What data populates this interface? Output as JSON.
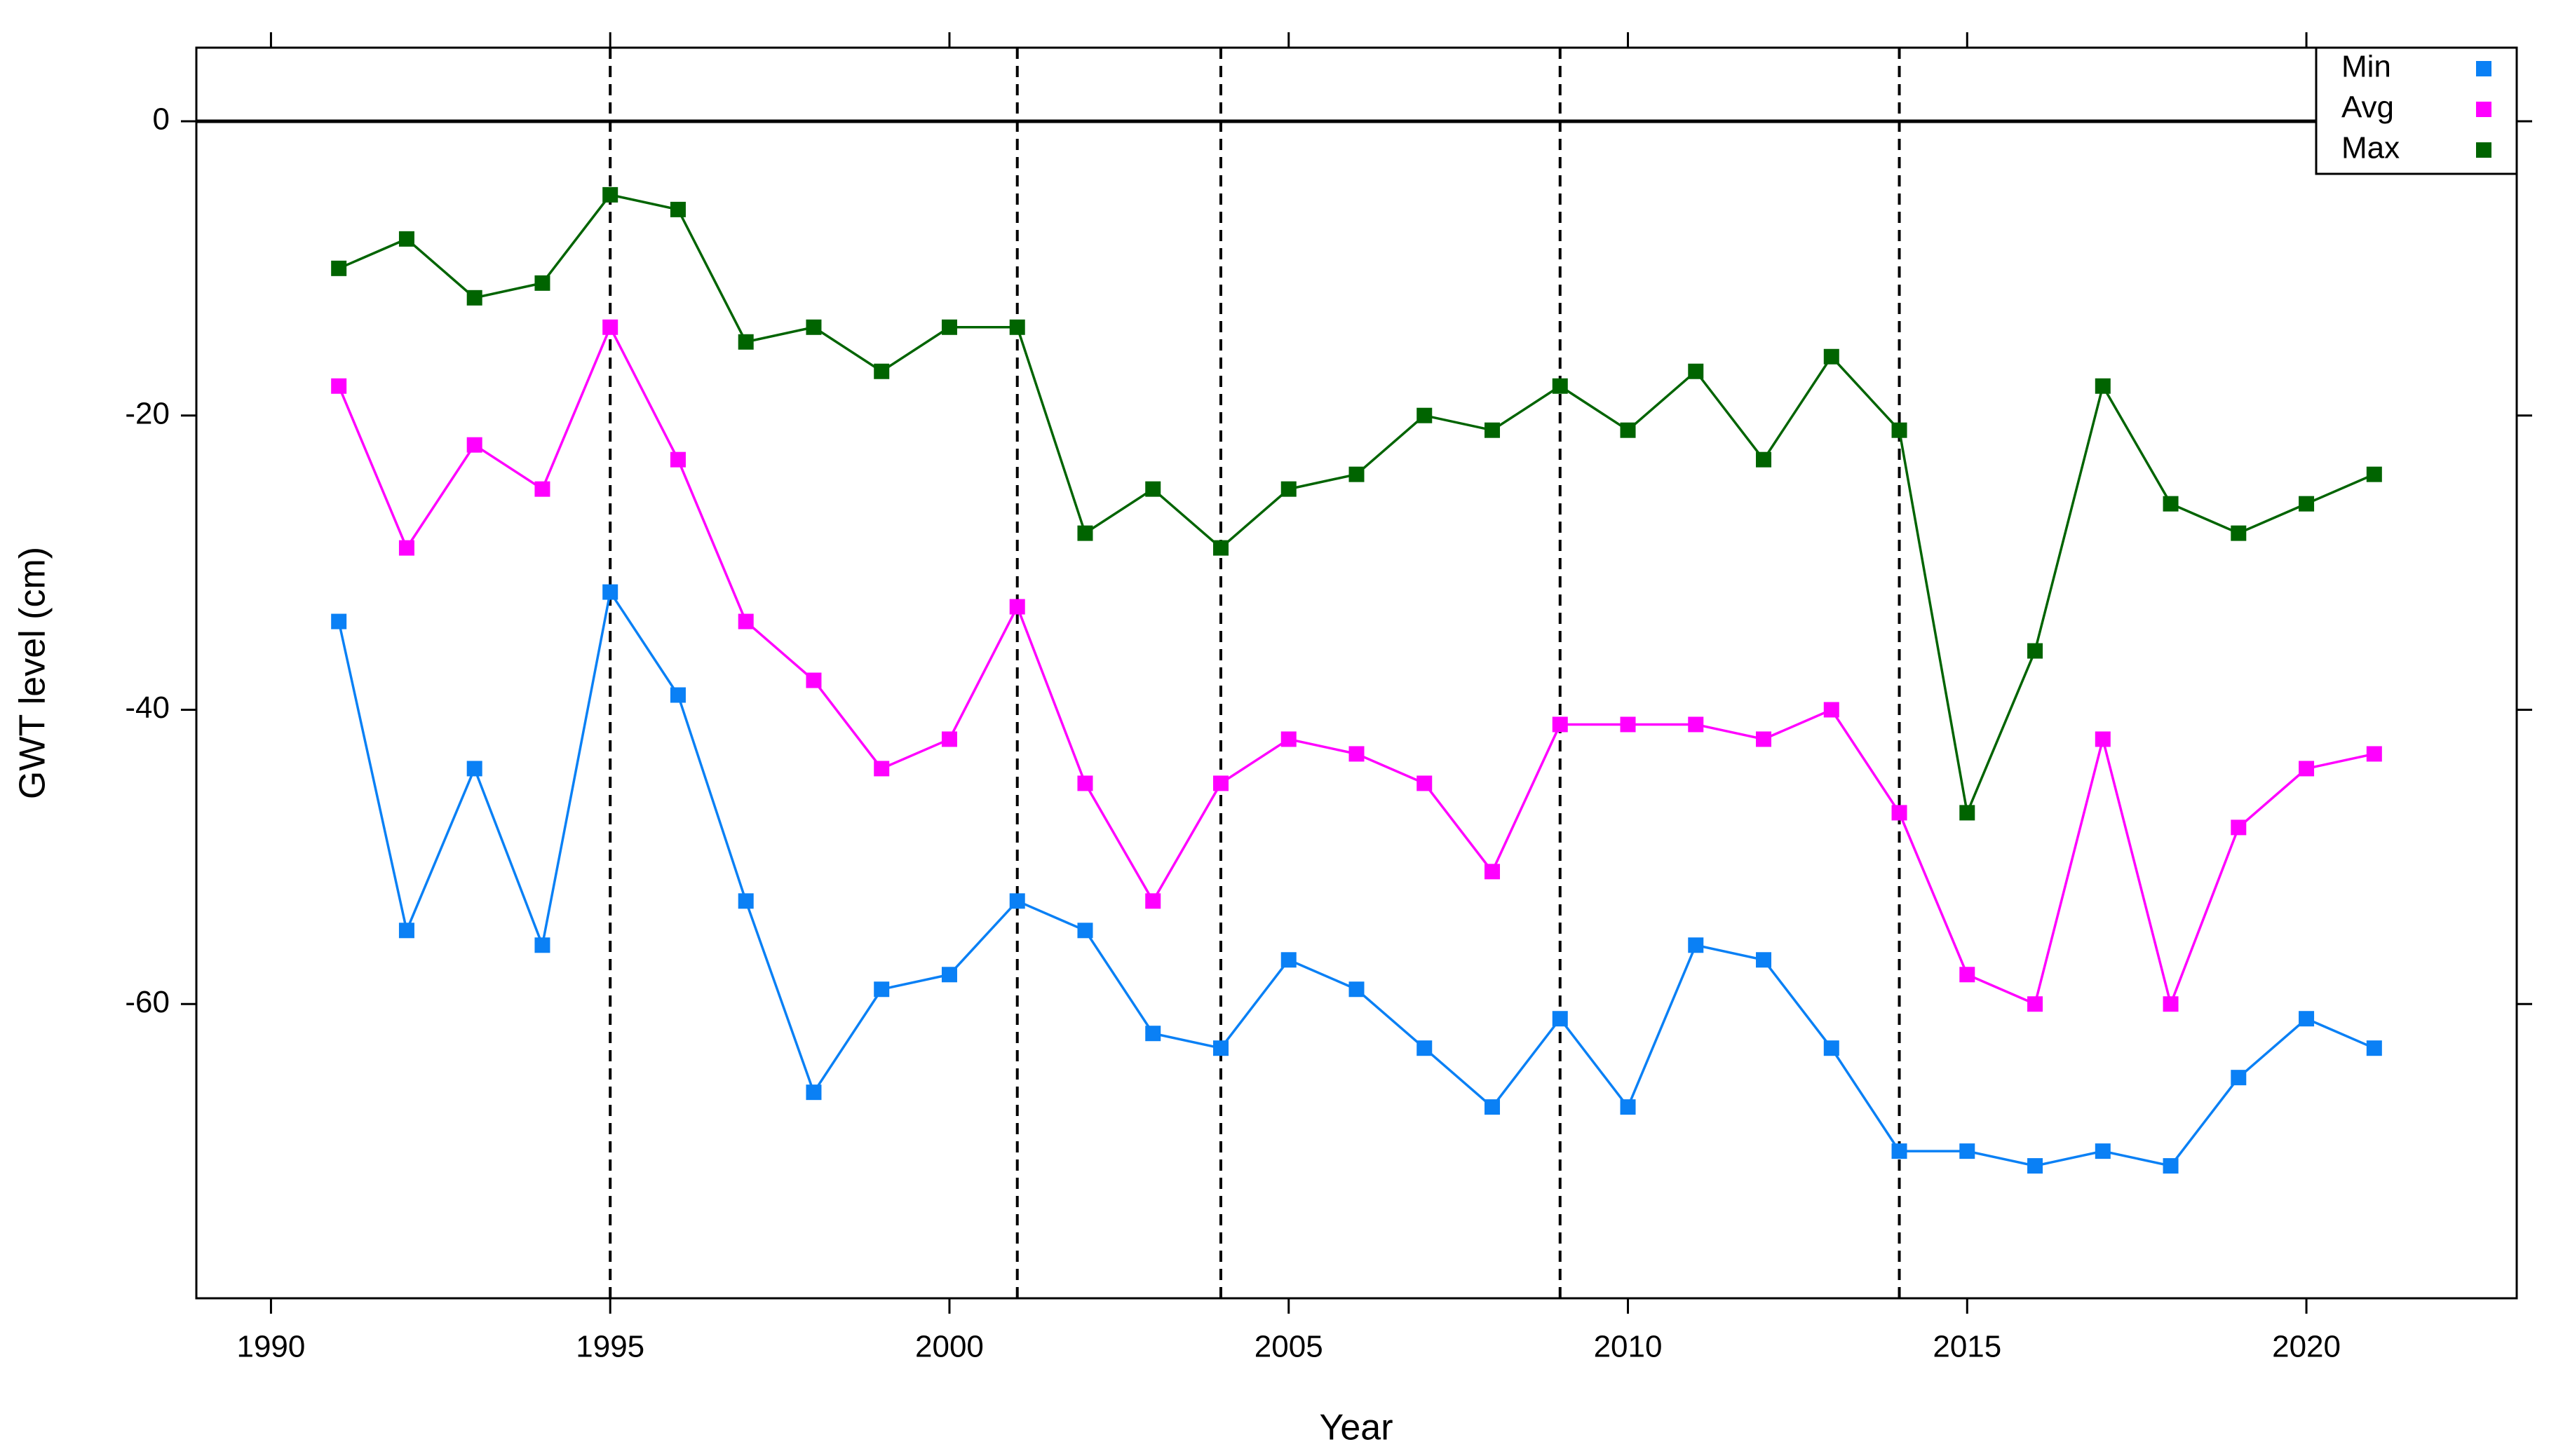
{
  "chart_data": {
    "type": "line",
    "xlabel": "Year",
    "ylabel": "GWT level (cm)",
    "x": [
      1991,
      1992,
      1993,
      1994,
      1995,
      1996,
      1997,
      1998,
      1999,
      2000,
      2001,
      2002,
      2003,
      2004,
      2005,
      2006,
      2007,
      2008,
      2009,
      2010,
      2011,
      2012,
      2013,
      2014,
      2015,
      2016,
      2017,
      2018,
      2019,
      2020,
      2021
    ],
    "series": [
      {
        "name": "Min",
        "color": "#0a80f5",
        "values": [
          -34,
          -55,
          -44,
          -56,
          -32,
          -39,
          -53,
          -66,
          -59,
          -58,
          -53,
          -55,
          -62,
          -63,
          -57,
          -59,
          -63,
          -67,
          -61,
          -67,
          -56,
          -57,
          -63,
          -70,
          -70,
          -71,
          -70,
          -71,
          -65,
          -61,
          -63
        ]
      },
      {
        "name": "Avg",
        "color": "#ff00ff",
        "values": [
          -18,
          -29,
          -22,
          -25,
          -14,
          -23,
          -34,
          -38,
          -44,
          -42,
          -33,
          -45,
          -53,
          -45,
          -42,
          -43,
          -45,
          -51,
          -41,
          -41,
          -41,
          -42,
          -40,
          -47,
          -58,
          -60,
          -42,
          -60,
          -48,
          -44,
          -43
        ]
      },
      {
        "name": "Max",
        "color": "#006400",
        "values": [
          -10,
          -8,
          -12,
          -11,
          -5,
          -6,
          -15,
          -14,
          -17,
          -14,
          -14,
          -28,
          -25,
          -29,
          -25,
          -24,
          -20,
          -21,
          -18,
          -21,
          -17,
          -23,
          -16,
          -21,
          -47,
          -36,
          -18,
          -26,
          -28,
          -26,
          -24
        ]
      }
    ],
    "xlim": [
      1988.9,
      2023.1
    ],
    "ylim": [
      -80,
      5
    ],
    "xticks": [
      1990,
      1995,
      2000,
      2005,
      2010,
      2015,
      2020
    ],
    "yticks": [
      -60,
      -40,
      -20,
      0
    ],
    "vlines": [
      1995,
      2001,
      2004,
      2009,
      2014
    ],
    "hline": 0,
    "legend": "top-right"
  }
}
